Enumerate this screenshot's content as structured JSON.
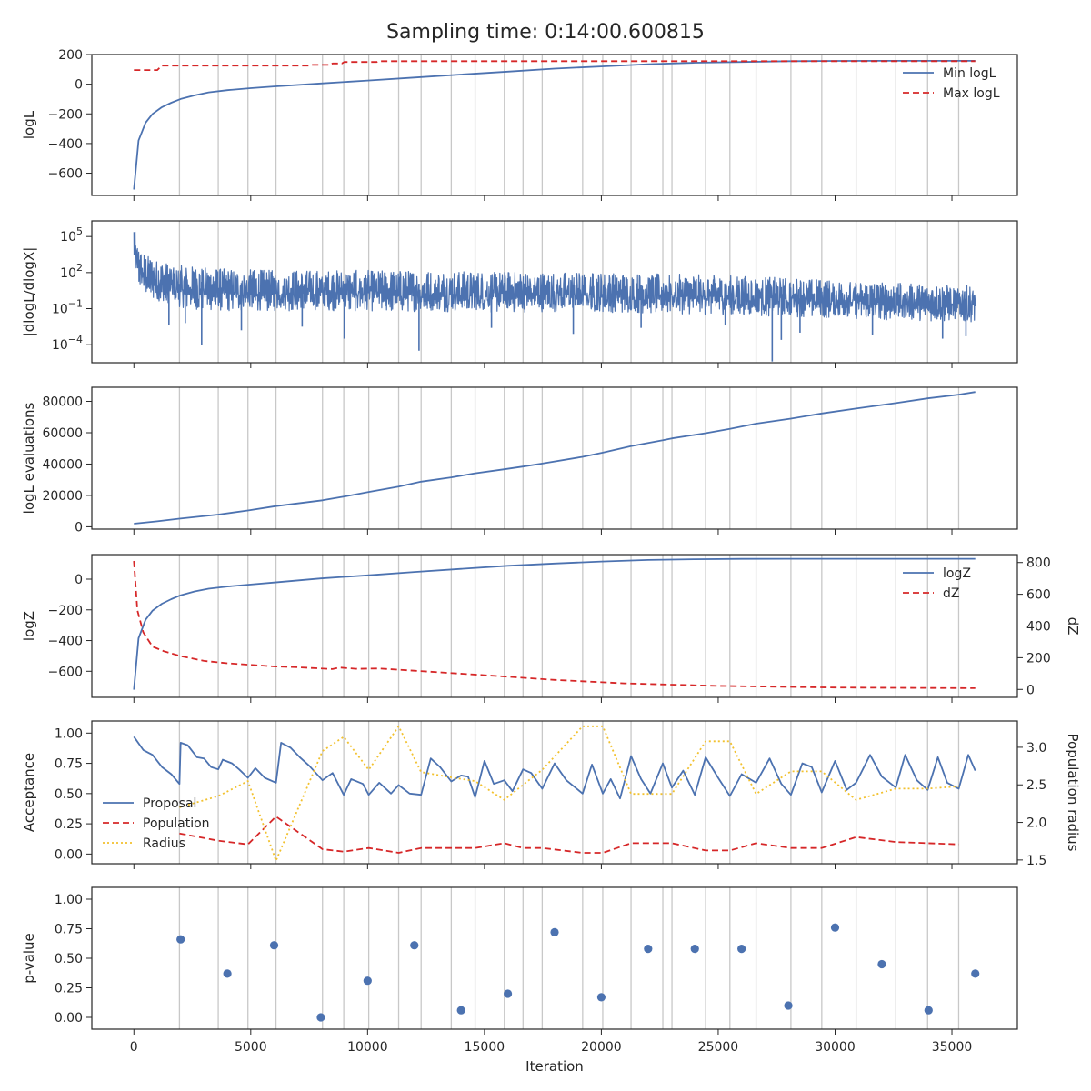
{
  "title": "Sampling time: 0:14:00.600815",
  "colors": {
    "blue": "#4c72b0",
    "red": "#d62728",
    "yellow": "#f2c12e",
    "grid": "#c8c8c8",
    "axis": "#262626"
  },
  "batch_iterations": [
    1950,
    3610,
    4880,
    6080,
    8070,
    8980,
    10050,
    11330,
    12290,
    13580,
    14600,
    15850,
    16650,
    17470,
    19200,
    20060,
    21270,
    22630,
    23020,
    24460,
    25500,
    26620,
    28110,
    29430,
    30900,
    32600,
    33960,
    35290
  ],
  "chart_data": [
    {
      "type": "line",
      "id": "logl",
      "ylabel": "logL",
      "xlim": [
        -1800,
        37800
      ],
      "ylim": [
        -750,
        200
      ],
      "yticks": [
        200,
        0,
        -200,
        -400,
        -600
      ],
      "ytick_labels": [
        "200",
        "0",
        "−200",
        "−400",
        "−600"
      ],
      "legend": "top-right",
      "series": [
        {
          "name": "Min logL",
          "style": "solid",
          "color": "#4c72b0",
          "x": [
            0,
            200,
            500,
            800,
            1200,
            1600,
            2000,
            2600,
            3200,
            4000,
            5000,
            6000,
            8000,
            10000,
            12000,
            14000,
            16000,
            18000,
            20000,
            22000,
            24000,
            26000,
            28000,
            30000,
            32000,
            34000,
            36000
          ],
          "y": [
            -710,
            -380,
            -260,
            -200,
            -155,
            -125,
            -100,
            -75,
            -55,
            -40,
            -27,
            -15,
            5,
            25,
            45,
            65,
            85,
            105,
            120,
            135,
            145,
            150,
            155,
            157,
            158,
            158,
            158
          ]
        },
        {
          "name": "Max logL",
          "style": "dashed",
          "color": "#d62728",
          "x": [
            0,
            1000,
            1200,
            7500,
            7600,
            8400,
            8500,
            8900,
            9000,
            10400,
            10500,
            36000
          ],
          "y": [
            95,
            95,
            125,
            125,
            130,
            130,
            140,
            140,
            150,
            150,
            155,
            155
          ]
        }
      ]
    },
    {
      "type": "line",
      "id": "dlogl",
      "ylabel": "|dlogL/dlogX|",
      "log_scale": true,
      "ylim_log10": [
        -5.5,
        6.3
      ],
      "yticks_log10": [
        5,
        2,
        -1,
        -4
      ],
      "ytick_labels": [
        "10^5",
        "10^2",
        "10^-1",
        "10^-4"
      ],
      "series": [
        {
          "name": "",
          "style": "noisy-band",
          "color": "#4c72b0",
          "x": [
            0,
            100,
            300,
            600,
            1000,
            2000,
            4000,
            6000,
            10000,
            15000,
            20000,
            25000,
            30000,
            33000,
            36000
          ],
          "upper_log10": [
            6.2,
            4.6,
            3.8,
            3.4,
            3.0,
            2.6,
            2.3,
            2.2,
            2.2,
            2.1,
            2.0,
            1.8,
            1.4,
            1.1,
            0.9
          ],
          "lower_log10": [
            3.0,
            1.5,
            0.5,
            0.0,
            -0.4,
            -1.0,
            -1.2,
            -1.2,
            -1.2,
            -1.3,
            -1.3,
            -1.5,
            -1.8,
            -2.0,
            -2.1
          ],
          "spikes": [
            [
              1500,
              -2.4
            ],
            [
              2200,
              -2.2
            ],
            [
              2900,
              -4.0
            ],
            [
              4600,
              -2.8
            ],
            [
              7200,
              -2.5
            ],
            [
              9000,
              -3.5
            ],
            [
              12200,
              -4.5
            ],
            [
              15300,
              -2.6
            ],
            [
              18800,
              -3.1
            ],
            [
              21700,
              -2.6
            ],
            [
              25300,
              -2.4
            ],
            [
              27700,
              -3.6
            ],
            [
              28500,
              -3.0
            ],
            [
              31600,
              -3.2
            ],
            [
              34600,
              -3.5
            ],
            [
              35600,
              -3.3
            ]
          ],
          "deep_spike": [
            27310,
            -5.4
          ]
        }
      ]
    },
    {
      "type": "line",
      "id": "evals",
      "ylabel": "logL evaluations",
      "ylim": [
        -1500,
        89000
      ],
      "yticks": [
        80000,
        60000,
        40000,
        20000,
        0
      ],
      "ytick_labels": [
        "80000",
        "60000",
        "40000",
        "20000",
        "0"
      ],
      "series": [
        {
          "name": "",
          "style": "solid",
          "color": "#4c72b0",
          "x": [
            0,
            1000,
            1950,
            3610,
            4880,
            6080,
            8070,
            8980,
            10050,
            11330,
            12290,
            13580,
            14600,
            15850,
            16650,
            17470,
            19200,
            20060,
            21270,
            22630,
            23020,
            24460,
            25500,
            26620,
            28110,
            29430,
            30900,
            32600,
            33960,
            35290,
            36000
          ],
          "y": [
            2000,
            3500,
            5200,
            7800,
            10400,
            13200,
            16900,
            19200,
            22200,
            25600,
            28800,
            31500,
            34100,
            36700,
            38400,
            40300,
            44600,
            47300,
            51400,
            55200,
            56400,
            59700,
            62500,
            65800,
            69000,
            72300,
            75400,
            78900,
            81900,
            84300,
            86000
          ]
        }
      ]
    },
    {
      "type": "line",
      "id": "logz",
      "ylabel": "logZ",
      "y2label": "dZ",
      "ylim": [
        -770,
        160
      ],
      "yticks": [
        0,
        -200,
        -400,
        -600
      ],
      "ytick_labels": [
        "0",
        "−200",
        "−400",
        "−600"
      ],
      "y2lim": [
        -50,
        850
      ],
      "y2ticks": [
        800,
        600,
        400,
        200,
        0
      ],
      "y2tick_labels": [
        "800",
        "600",
        "400",
        "200",
        "0"
      ],
      "legend": "top-right",
      "series": [
        {
          "name": "logZ",
          "style": "solid",
          "color": "#4c72b0",
          "axis": "left",
          "x": [
            0,
            200,
            500,
            800,
            1200,
            1600,
            2000,
            2600,
            3200,
            4000,
            5000,
            6000,
            8000,
            10000,
            12000,
            14000,
            16000,
            18000,
            20000,
            22000,
            24000,
            26000,
            28000,
            30000,
            32000,
            34000,
            36000
          ],
          "y": [
            -720,
            -385,
            -265,
            -205,
            -160,
            -130,
            -105,
            -80,
            -62,
            -48,
            -35,
            -22,
            5,
            25,
            47,
            67,
            87,
            102,
            115,
            125,
            130,
            132,
            133,
            133,
            133,
            133,
            133
          ]
        },
        {
          "name": "dZ",
          "style": "dashed",
          "color": "#d62728",
          "axis": "right",
          "x": [
            0,
            150,
            400,
            800,
            1300,
            2000,
            3000,
            4000,
            6000,
            7000,
            8500,
            8800,
            9500,
            10500,
            12000,
            15000,
            18000,
            21000,
            25000,
            30000,
            36000
          ],
          "y": [
            810,
            500,
            360,
            270,
            240,
            210,
            180,
            165,
            145,
            140,
            128,
            138,
            130,
            132,
            118,
            90,
            60,
            38,
            22,
            12,
            8
          ]
        }
      ]
    },
    {
      "type": "line",
      "id": "accept",
      "ylabel": "Acceptance",
      "y2label": "Population radius",
      "ylim": [
        -0.08,
        1.1
      ],
      "yticks": [
        1.0,
        0.75,
        0.5,
        0.25,
        0.0
      ],
      "ytick_labels": [
        "1.00",
        "0.75",
        "0.50",
        "0.25",
        "0.00"
      ],
      "y2lim": [
        1.45,
        3.35
      ],
      "y2ticks": [
        3.0,
        2.5,
        2.0,
        1.5
      ],
      "y2tick_labels": [
        "3.0",
        "2.5",
        "2.0",
        "1.5"
      ],
      "legend": "left",
      "series": [
        {
          "name": "Proposal",
          "style": "solid",
          "color": "#4c72b0",
          "axis": "left",
          "x": [
            0,
            400,
            800,
            1200,
            1600,
            1950,
            2000,
            2300,
            2700,
            3000,
            3300,
            3610,
            3800,
            4200,
            4500,
            4880,
            5200,
            5600,
            6080,
            6300,
            6700,
            7100,
            7500,
            8070,
            8500,
            8980,
            9300,
            9800,
            10050,
            10500,
            11000,
            11330,
            11800,
            12290,
            12700,
            13100,
            13580,
            14000,
            14300,
            14600,
            15000,
            15400,
            15850,
            16200,
            16650,
            17000,
            17470,
            18000,
            18500,
            19200,
            19600,
            20060,
            20400,
            20800,
            21270,
            21700,
            22100,
            22630,
            23020,
            23500,
            24000,
            24460,
            25000,
            25500,
            26000,
            26620,
            27200,
            27700,
            28110,
            28600,
            29000,
            29430,
            30000,
            30500,
            30900,
            31500,
            32000,
            32600,
            33000,
            33500,
            33960,
            34400,
            34800,
            35290,
            35700,
            36000
          ],
          "y": [
            0.97,
            0.86,
            0.82,
            0.72,
            0.66,
            0.58,
            0.92,
            0.9,
            0.8,
            0.79,
            0.72,
            0.7,
            0.78,
            0.75,
            0.7,
            0.63,
            0.71,
            0.63,
            0.59,
            0.92,
            0.88,
            0.8,
            0.73,
            0.61,
            0.67,
            0.49,
            0.62,
            0.58,
            0.49,
            0.59,
            0.5,
            0.57,
            0.5,
            0.49,
            0.79,
            0.72,
            0.6,
            0.65,
            0.64,
            0.47,
            0.77,
            0.58,
            0.61,
            0.52,
            0.7,
            0.67,
            0.54,
            0.75,
            0.61,
            0.5,
            0.74,
            0.5,
            0.62,
            0.46,
            0.81,
            0.62,
            0.5,
            0.75,
            0.55,
            0.69,
            0.49,
            0.8,
            0.63,
            0.48,
            0.66,
            0.59,
            0.79,
            0.58,
            0.49,
            0.75,
            0.72,
            0.51,
            0.77,
            0.53,
            0.59,
            0.82,
            0.64,
            0.55,
            0.82,
            0.61,
            0.53,
            0.8,
            0.59,
            0.54,
            0.82,
            0.69
          ]
        },
        {
          "name": "Population",
          "style": "dashed",
          "color": "#d62728",
          "axis": "left",
          "x": [
            1950,
            3610,
            4880,
            6080,
            8070,
            8980,
            10050,
            11330,
            12290,
            13580,
            14600,
            15850,
            16650,
            17470,
            19200,
            20060,
            21270,
            22630,
            23020,
            24460,
            25500,
            26620,
            28110,
            29430,
            30900,
            32600,
            33960,
            35290
          ],
          "y": [
            0.17,
            0.11,
            0.08,
            0.31,
            0.04,
            0.02,
            0.05,
            0.01,
            0.05,
            0.05,
            0.05,
            0.09,
            0.05,
            0.05,
            0.01,
            0.01,
            0.09,
            0.09,
            0.09,
            0.03,
            0.03,
            0.09,
            0.05,
            0.05,
            0.14,
            0.1,
            0.09,
            0.08
          ]
        },
        {
          "name": "Radius",
          "style": "dotted",
          "color": "#f2c12e",
          "axis": "right",
          "x": [
            1950,
            3610,
            4880,
            6080,
            8070,
            8980,
            10050,
            11330,
            12290,
            13580,
            14600,
            15850,
            16650,
            17470,
            19200,
            20060,
            21270,
            22630,
            23020,
            24460,
            25500,
            26620,
            28110,
            29430,
            30900,
            32600,
            33960,
            35290
          ],
          "y": [
            2.2,
            2.35,
            2.55,
            1.49,
            2.95,
            3.14,
            2.7,
            3.28,
            2.67,
            2.6,
            2.55,
            2.3,
            2.5,
            2.7,
            3.28,
            3.28,
            2.38,
            2.38,
            2.38,
            3.08,
            3.08,
            2.38,
            2.68,
            2.68,
            2.3,
            2.45,
            2.45,
            2.48
          ]
        }
      ]
    },
    {
      "type": "scatter",
      "id": "pvalue",
      "ylabel": "p-value",
      "xlabel": "Iteration",
      "ylim": [
        -0.1,
        1.1
      ],
      "yticks": [
        1.0,
        0.75,
        0.5,
        0.25,
        0.0
      ],
      "ytick_labels": [
        "1.00",
        "0.75",
        "0.50",
        "0.25",
        "0.00"
      ],
      "xticks": [
        0,
        5000,
        10000,
        15000,
        20000,
        25000,
        30000,
        35000
      ],
      "xtick_labels": [
        "0",
        "5000",
        "10000",
        "15000",
        "20000",
        "25000",
        "30000",
        "35000"
      ],
      "series": [
        {
          "name": "",
          "style": "marker",
          "color": "#4c72b0",
          "x": [
            2000,
            4000,
            6000,
            8000,
            10000,
            12000,
            14000,
            16000,
            18000,
            20000,
            22000,
            24000,
            26000,
            28000,
            30000,
            32000,
            34000,
            36000
          ],
          "y": [
            0.66,
            0.37,
            0.61,
            0.0,
            0.31,
            0.61,
            0.06,
            0.2,
            0.72,
            0.17,
            0.58,
            0.58,
            0.58,
            0.1,
            0.76,
            0.45,
            0.06,
            0.37
          ]
        }
      ]
    }
  ]
}
